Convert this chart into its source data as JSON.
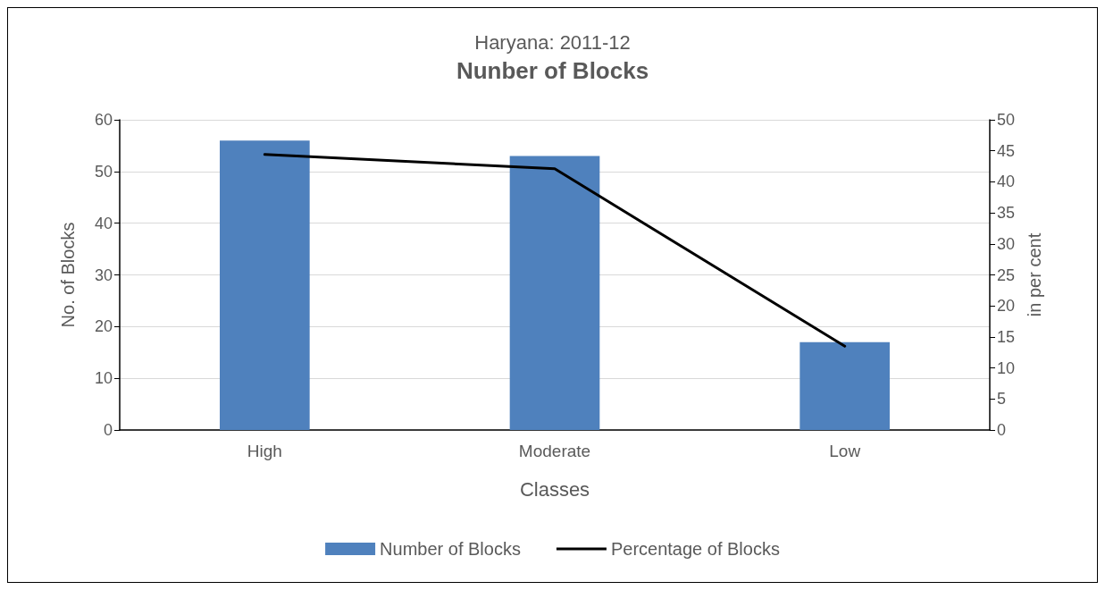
{
  "chart_data": {
    "type": "bar",
    "title": "Nunber of Blocks",
    "subtitle": "Haryana: 2011-12",
    "xlabel": "Classes",
    "ylabel": "No. of Blocks",
    "y2label": "in per cent",
    "categories": [
      "High",
      "Moderate",
      "Low"
    ],
    "series": [
      {
        "name": "Number of Blocks",
        "color": "#4f81bd",
        "values": [
          56,
          53,
          17
        ]
      },
      {
        "name": "Percentage of Blocks",
        "type": "line",
        "axis": "y2",
        "color": "#000000",
        "values": [
          44.4,
          42.1,
          13.5
        ]
      }
    ],
    "ylim": [
      0,
      60
    ],
    "yticks": [
      0,
      10,
      20,
      30,
      40,
      50,
      60
    ],
    "y2lim": [
      0,
      50
    ],
    "y2ticks": [
      0,
      5,
      10,
      15,
      20,
      25,
      30,
      35,
      40,
      45,
      50
    ],
    "grid": "y",
    "legend": "bottom",
    "marker": "none"
  }
}
